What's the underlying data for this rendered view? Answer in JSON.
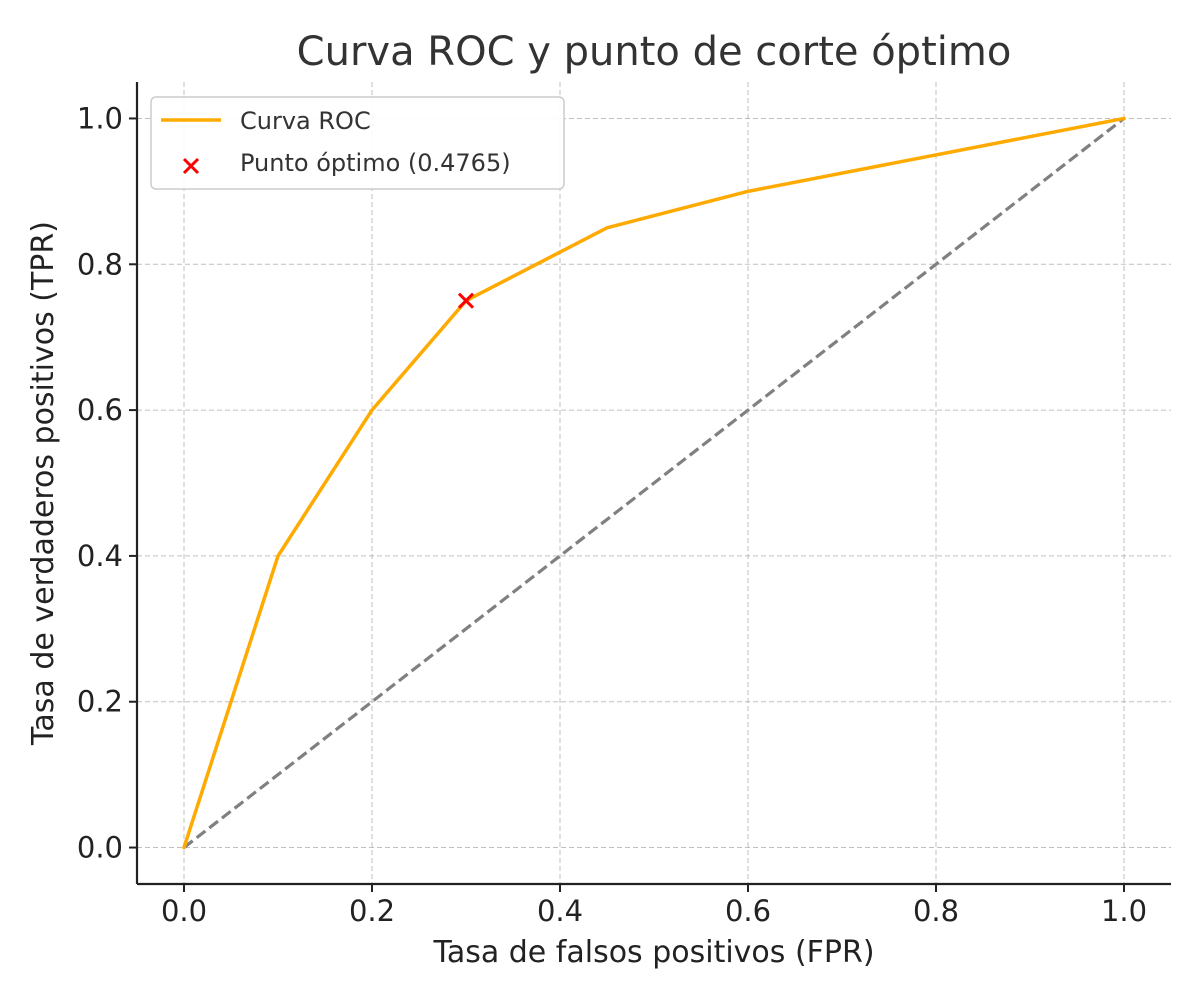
{
  "chart_data": {
    "type": "line",
    "title": "Curva ROC y punto de corte óptimo",
    "xlabel": "Tasa de falsos positivos (FPR)",
    "ylabel": "Tasa de verdaderos positivos (TPR)",
    "xlim": [
      -0.05,
      1.05
    ],
    "ylim": [
      -0.05,
      1.05
    ],
    "xticks": [
      "0.0",
      "0.2",
      "0.4",
      "0.6",
      "0.8",
      "1.0"
    ],
    "yticks": [
      "0.0",
      "0.2",
      "0.4",
      "0.6",
      "0.8",
      "1.0"
    ],
    "grid": true,
    "legend_position": "top-left",
    "series": [
      {
        "name": "Curva ROC",
        "color": "#FFAA00",
        "style": "solid",
        "x": [
          0.0,
          0.1,
          0.2,
          0.3,
          0.45,
          0.6,
          1.0
        ],
        "y": [
          0.0,
          0.4,
          0.6,
          0.75,
          0.85,
          0.9,
          1.0
        ]
      },
      {
        "color": "#808080",
        "style": "dashed",
        "x": [
          0.0,
          1.0
        ],
        "y": [
          0.0,
          1.0
        ]
      }
    ],
    "markers": [
      {
        "name": "Punto óptimo (0.4765)",
        "marker": "x",
        "color": "#FF0000",
        "x": 0.3,
        "y": 0.75
      }
    ]
  }
}
